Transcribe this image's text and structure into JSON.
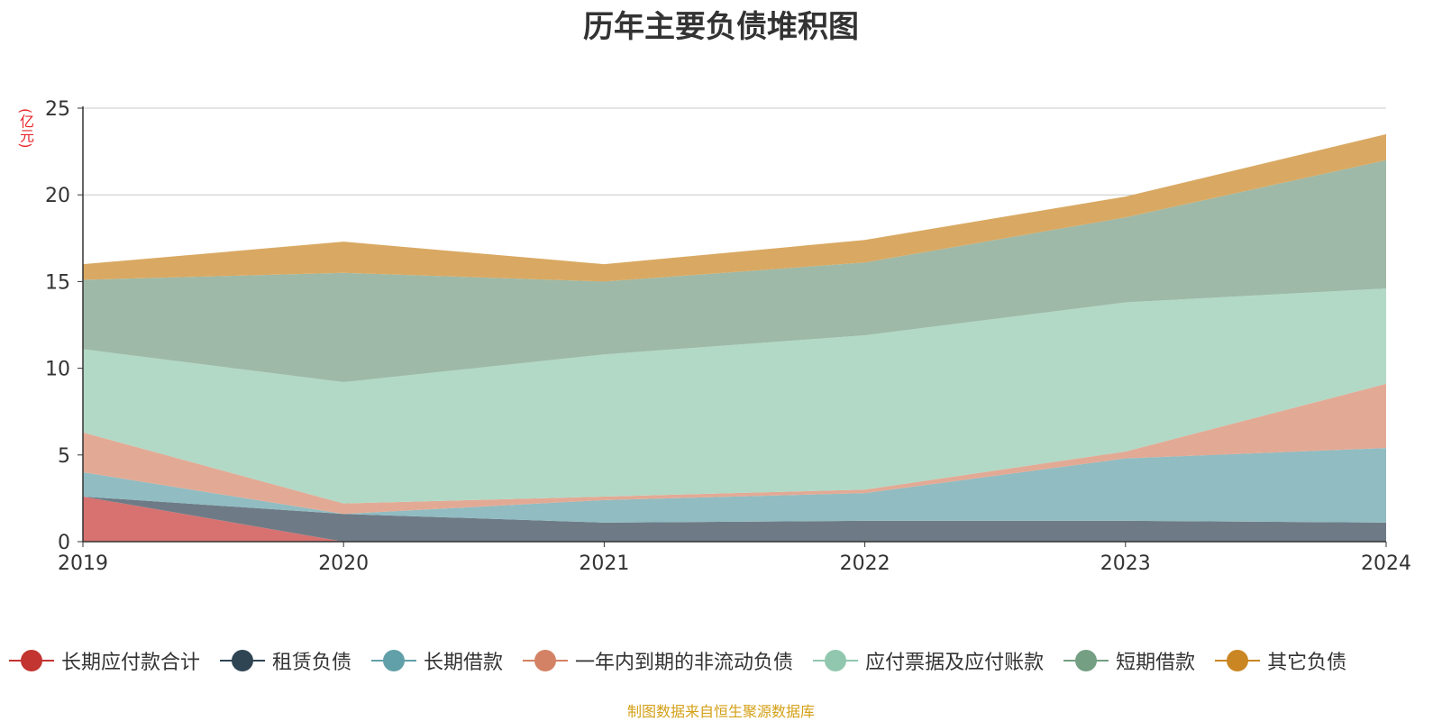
{
  "chart_data": {
    "type": "area",
    "title": "历年主要负债堆积图",
    "ylabel": "(亿元)",
    "x": [
      "2019",
      "2020",
      "2021",
      "2022",
      "2023",
      "2024"
    ],
    "ylim": [
      0,
      25
    ],
    "yticks": [
      "0",
      "5",
      "10",
      "15",
      "20",
      "25"
    ],
    "grid": true,
    "stacked": true,
    "legend_position": "bottom",
    "series": [
      {
        "name": "长期应付款合计",
        "color": "#c23531",
        "fill": "#d77270",
        "values": [
          2.6,
          0.0,
          0.0,
          0.0,
          0.0,
          0.0
        ]
      },
      {
        "name": "租赁负债",
        "color": "#2f4554",
        "fill": "#6e7b86",
        "values": [
          0.0,
          1.6,
          1.1,
          1.2,
          1.2,
          1.1
        ]
      },
      {
        "name": "长期借款",
        "color": "#61a0a8",
        "fill": "#90bcc2",
        "values": [
          1.4,
          0.0,
          1.3,
          1.6,
          3.6,
          4.3
        ]
      },
      {
        "name": "一年内到期的非流动负债",
        "color": "#d48265",
        "fill": "#e2aa95",
        "values": [
          2.3,
          0.6,
          0.2,
          0.2,
          0.4,
          3.7
        ]
      },
      {
        "name": "应付票据及应付账款",
        "color": "#91c7ae",
        "fill": "#b1d9c6",
        "values": [
          4.8,
          7.0,
          8.2,
          8.9,
          8.6,
          5.5
        ]
      },
      {
        "name": "短期借款",
        "color": "#749f83",
        "fill": "#9eb9a7",
        "values": [
          4.0,
          6.3,
          4.2,
          4.2,
          4.9,
          7.4
        ]
      },
      {
        "name": "其它负债",
        "color": "#ca8622",
        "fill": "#d9a963",
        "values": [
          0.9,
          1.8,
          1.0,
          1.3,
          1.2,
          1.5
        ]
      }
    ]
  },
  "footer": {
    "source": "制图数据来自恒生聚源数据库"
  }
}
